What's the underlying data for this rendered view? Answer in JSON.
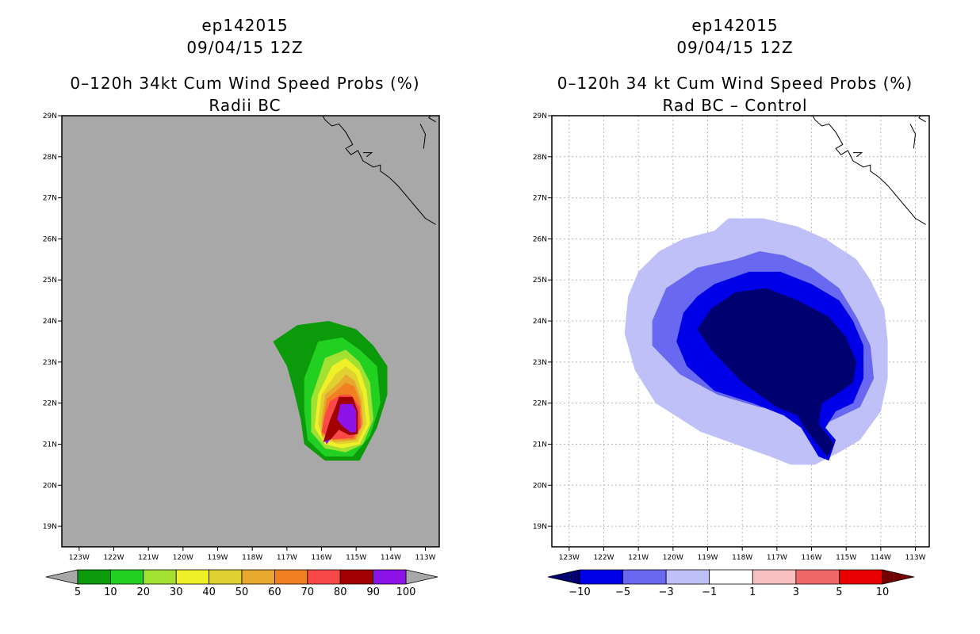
{
  "panels": [
    {
      "storm_id": "ep142015",
      "datetime": "09/04/15 12Z",
      "title": "0–120h 34kt Cum Wind Speed Probs (%)",
      "subtitle": "Radii BC"
    },
    {
      "storm_id": "ep142015",
      "datetime": "09/04/15 12Z",
      "title": "0–120h 34 kt Cum Wind Speed Probs (%)",
      "subtitle": "Rad BC – Control"
    }
  ],
  "chart_data": [
    {
      "type": "heatmap",
      "title": "0–120h 34kt Cum Wind Speed Probs (%)",
      "subtitle": "Radii BC",
      "xlabel": "",
      "ylabel": "",
      "xlim": [
        -123.5,
        -112.6
      ],
      "ylim": [
        18.5,
        29
      ],
      "x_ticks": [
        "123W",
        "122W",
        "121W",
        "120W",
        "119W",
        "118W",
        "117W",
        "116W",
        "115W",
        "114W",
        "113W"
      ],
      "y_ticks": [
        "19N",
        "20N",
        "21N",
        "22N",
        "23N",
        "24N",
        "25N",
        "26N",
        "27N",
        "28N",
        "29N"
      ],
      "grid": false,
      "background": "#a8a8a8",
      "colorbar": {
        "labels": [
          "5",
          "10",
          "20",
          "30",
          "40",
          "50",
          "60",
          "70",
          "80",
          "90",
          "100"
        ],
        "colors": [
          "#0a9a0a",
          "#22d022",
          "#a2e032",
          "#f0f028",
          "#e0d030",
          "#e8a830",
          "#f08020",
          "#f84848",
          "#a00000",
          "#8c14e8"
        ],
        "end_colors": [
          "#a8a8a8",
          "#a8a8a8"
        ]
      },
      "contours": [
        {
          "level": 5,
          "color": "#0a9a0a",
          "points": [
            [
              -116.7,
              23.9
            ],
            [
              -115.8,
              24.0
            ],
            [
              -115.0,
              23.8
            ],
            [
              -114.5,
              23.4
            ],
            [
              -114.1,
              22.9
            ],
            [
              -114.1,
              22.2
            ],
            [
              -114.4,
              21.4
            ],
            [
              -114.9,
              20.6
            ],
            [
              -115.9,
              20.6
            ],
            [
              -116.5,
              21.0
            ],
            [
              -116.6,
              21.6
            ],
            [
              -116.8,
              22.3
            ],
            [
              -117.0,
              22.9
            ],
            [
              -117.4,
              23.5
            ]
          ]
        },
        {
          "level": 10,
          "color": "#22d022",
          "points": [
            [
              -116.1,
              23.5
            ],
            [
              -115.4,
              23.6
            ],
            [
              -114.9,
              23.3
            ],
            [
              -114.4,
              22.9
            ],
            [
              -114.3,
              22.0
            ],
            [
              -114.6,
              21.2
            ],
            [
              -115.1,
              20.7
            ],
            [
              -115.9,
              20.7
            ],
            [
              -116.4,
              21.1
            ],
            [
              -116.5,
              21.8
            ],
            [
              -116.5,
              22.6
            ]
          ]
        },
        {
          "level": 20,
          "color": "#a2e032",
          "points": [
            [
              -115.9,
              23.1
            ],
            [
              -115.3,
              23.3
            ],
            [
              -114.9,
              23.0
            ],
            [
              -114.6,
              22.5
            ],
            [
              -114.5,
              21.6
            ],
            [
              -114.8,
              21.0
            ],
            [
              -115.3,
              20.8
            ],
            [
              -115.9,
              20.9
            ],
            [
              -116.3,
              21.3
            ],
            [
              -116.3,
              22.1
            ]
          ]
        },
        {
          "level": 30,
          "color": "#f0f028",
          "points": [
            [
              -115.7,
              22.9
            ],
            [
              -115.3,
              23.1
            ],
            [
              -114.9,
              22.8
            ],
            [
              -114.7,
              22.3
            ],
            [
              -114.6,
              21.5
            ],
            [
              -114.9,
              21.0
            ],
            [
              -115.4,
              20.9
            ],
            [
              -115.9,
              21.0
            ],
            [
              -116.2,
              21.4
            ],
            [
              -116.1,
              22.2
            ]
          ]
        },
        {
          "level": 40,
          "color": "#e0d030",
          "points": [
            [
              -115.6,
              22.7
            ],
            [
              -115.3,
              22.9
            ],
            [
              -115.0,
              22.7
            ],
            [
              -114.8,
              22.2
            ],
            [
              -114.7,
              21.5
            ],
            [
              -114.95,
              21.05
            ],
            [
              -115.5,
              21.0
            ],
            [
              -115.95,
              21.1
            ],
            [
              -116.1,
              21.5
            ],
            [
              -116.0,
              22.2
            ]
          ]
        },
        {
          "level": 50,
          "color": "#e8a830",
          "points": [
            [
              -115.5,
              22.5
            ],
            [
              -115.3,
              22.7
            ],
            [
              -115.05,
              22.55
            ],
            [
              -114.85,
              22.1
            ],
            [
              -114.8,
              21.5
            ],
            [
              -115.0,
              21.1
            ],
            [
              -115.6,
              21.05
            ],
            [
              -116.0,
              21.2
            ],
            [
              -116.0,
              21.6
            ],
            [
              -115.9,
              22.2
            ]
          ]
        },
        {
          "level": 60,
          "color": "#f08020",
          "points": [
            [
              -115.5,
              22.35
            ],
            [
              -115.3,
              22.5
            ],
            [
              -115.05,
              22.4
            ],
            [
              -114.88,
              22.0
            ],
            [
              -114.82,
              21.5
            ],
            [
              -115.05,
              21.12
            ],
            [
              -115.65,
              21.1
            ],
            [
              -116.0,
              21.25
            ],
            [
              -115.95,
              21.6
            ],
            [
              -115.85,
              22.1
            ]
          ]
        },
        {
          "level": 70,
          "color": "#f84848",
          "points": [
            [
              -115.45,
              22.2
            ],
            [
              -115.15,
              22.2
            ],
            [
              -114.9,
              21.9
            ],
            [
              -114.86,
              21.4
            ],
            [
              -115.1,
              21.15
            ],
            [
              -115.7,
              21.12
            ],
            [
              -116.0,
              21.3
            ],
            [
              -115.9,
              21.7
            ],
            [
              -115.75,
              22.05
            ]
          ]
        },
        {
          "level": 80,
          "color": "#a00000",
          "points": [
            [
              -115.5,
              22.15
            ],
            [
              -115.1,
              22.15
            ],
            [
              -114.95,
              21.8
            ],
            [
              -114.95,
              21.25
            ],
            [
              -115.2,
              21.22
            ],
            [
              -115.5,
              21.35
            ],
            [
              -115.75,
              21.1
            ],
            [
              -115.95,
              21.05
            ],
            [
              -115.75,
              21.6
            ],
            [
              -115.6,
              21.9
            ]
          ]
        },
        {
          "level": 90,
          "color": "#8c14e8",
          "points": [
            [
              -115.45,
              21.98
            ],
            [
              -115.1,
              21.98
            ],
            [
              -115.0,
              21.8
            ],
            [
              -115.0,
              21.3
            ],
            [
              -115.15,
              21.28
            ],
            [
              -115.4,
              21.45
            ],
            [
              -115.55,
              21.6
            ]
          ]
        },
        {
          "level": 90,
          "color": "#8c14e8",
          "points": [
            [
              -115.9,
              21.08
            ],
            [
              -115.75,
              21.12
            ],
            [
              -115.85,
              21.0
            ]
          ]
        }
      ]
    },
    {
      "type": "heatmap",
      "title": "0–120h 34 kt Cum Wind Speed Probs (%)",
      "subtitle": "Rad BC – Control",
      "xlabel": "",
      "ylabel": "",
      "xlim": [
        -123.5,
        -112.6
      ],
      "ylim": [
        18.5,
        29
      ],
      "x_ticks": [
        "123W",
        "122W",
        "121W",
        "120W",
        "119W",
        "118W",
        "117W",
        "116W",
        "115W",
        "114W",
        "113W"
      ],
      "y_ticks": [
        "19N",
        "20N",
        "21N",
        "22N",
        "23N",
        "24N",
        "25N",
        "26N",
        "27N",
        "28N",
        "29N"
      ],
      "grid": true,
      "background": "#ffffff",
      "colorbar": {
        "labels": [
          "−10",
          "−5",
          "−3",
          "−1",
          "1",
          "3",
          "5",
          "10"
        ],
        "colors": [
          "#0000e8",
          "#6868f0",
          "#c0c0f8",
          "#ffffff",
          "#f8c0c0",
          "#f06868",
          "#e80000"
        ],
        "end_colors": [
          "#000070",
          "#700000"
        ]
      },
      "contours": [
        {
          "level": -1,
          "color": "#c0c0f8",
          "points": [
            [
              -118.4,
              26.5
            ],
            [
              -117.4,
              26.5
            ],
            [
              -116.4,
              26.3
            ],
            [
              -115.6,
              26.0
            ],
            [
              -114.7,
              25.5
            ],
            [
              -114.3,
              25.0
            ],
            [
              -113.9,
              24.3
            ],
            [
              -113.8,
              23.5
            ],
            [
              -113.8,
              22.6
            ],
            [
              -114.0,
              21.8
            ],
            [
              -114.6,
              21.1
            ],
            [
              -115.2,
              20.8
            ],
            [
              -115.9,
              20.5
            ],
            [
              -116.6,
              20.5
            ],
            [
              -117.2,
              20.7
            ],
            [
              -118.2,
              21.0
            ],
            [
              -119.2,
              21.3
            ],
            [
              -120.5,
              22.0
            ],
            [
              -121.1,
              22.8
            ],
            [
              -121.4,
              23.7
            ],
            [
              -121.3,
              24.6
            ],
            [
              -121.0,
              25.2
            ],
            [
              -120.4,
              25.7
            ],
            [
              -119.7,
              26.0
            ],
            [
              -118.8,
              26.2
            ]
          ]
        },
        {
          "level": -3,
          "color": "#6868f0",
          "points": [
            [
              -118.2,
              25.5
            ],
            [
              -117.5,
              25.7
            ],
            [
              -116.8,
              25.6
            ],
            [
              -116.0,
              25.3
            ],
            [
              -115.2,
              24.8
            ],
            [
              -114.7,
              24.1
            ],
            [
              -114.3,
              23.4
            ],
            [
              -114.2,
              22.6
            ],
            [
              -114.6,
              21.9
            ],
            [
              -115.1,
              21.7
            ],
            [
              -115.6,
              21.5
            ],
            [
              -116.0,
              21.6
            ],
            [
              -116.7,
              21.8
            ],
            [
              -117.5,
              21.9
            ],
            [
              -118.7,
              22.2
            ],
            [
              -119.8,
              22.7
            ],
            [
              -120.6,
              23.4
            ],
            [
              -120.6,
              24.0
            ],
            [
              -120.2,
              24.8
            ],
            [
              -119.3,
              25.3
            ]
          ]
        },
        {
          "level": -5,
          "color": "#0000e8",
          "points": [
            [
              -118.8,
              24.9
            ],
            [
              -117.8,
              25.2
            ],
            [
              -116.9,
              25.2
            ],
            [
              -116.0,
              24.9
            ],
            [
              -115.2,
              24.5
            ],
            [
              -114.8,
              24.0
            ],
            [
              -114.5,
              23.4
            ],
            [
              -114.5,
              22.6
            ],
            [
              -114.8,
              22.0
            ],
            [
              -115.3,
              21.8
            ],
            [
              -115.6,
              21.4
            ],
            [
              -115.3,
              21.1
            ],
            [
              -115.5,
              20.6
            ],
            [
              -115.8,
              20.7
            ],
            [
              -116.3,
              21.4
            ],
            [
              -116.8,
              21.7
            ],
            [
              -117.7,
              22.0
            ],
            [
              -118.8,
              22.3
            ],
            [
              -119.6,
              22.9
            ],
            [
              -119.9,
              23.5
            ],
            [
              -119.7,
              24.2
            ],
            [
              -119.3,
              24.6
            ]
          ]
        },
        {
          "level": -10,
          "color": "#000070",
          "points": [
            [
              -118.9,
              24.3
            ],
            [
              -118.2,
              24.7
            ],
            [
              -117.3,
              24.8
            ],
            [
              -116.4,
              24.5
            ],
            [
              -115.5,
              24.1
            ],
            [
              -115.0,
              23.6
            ],
            [
              -114.7,
              23.0
            ],
            [
              -114.8,
              22.5
            ],
            [
              -115.3,
              22.2
            ],
            [
              -115.7,
              22.0
            ],
            [
              -115.8,
              21.5
            ],
            [
              -115.35,
              21.0
            ],
            [
              -115.55,
              20.7
            ],
            [
              -116.2,
              21.4
            ],
            [
              -116.4,
              21.7
            ],
            [
              -117.0,
              21.9
            ],
            [
              -118.0,
              22.5
            ],
            [
              -118.9,
              23.3
            ],
            [
              -119.3,
              23.8
            ]
          ]
        }
      ]
    }
  ],
  "map": {
    "coastline": [
      [
        -116.0,
        29.05
      ],
      [
        -115.9,
        28.9
      ],
      [
        -115.7,
        28.75
      ],
      [
        -115.5,
        28.8
      ],
      [
        -115.3,
        28.6
      ],
      [
        -115.1,
        28.3
      ],
      [
        -115.3,
        28.2
      ],
      [
        -115.15,
        28.05
      ],
      [
        -114.95,
        28.15
      ],
      [
        -114.8,
        27.9
      ],
      [
        -114.5,
        27.75
      ],
      [
        -114.3,
        27.8
      ],
      [
        -114.3,
        27.65
      ],
      [
        -114.05,
        27.5
      ],
      [
        -113.8,
        27.3
      ],
      [
        -113.5,
        27.0
      ],
      [
        -113.3,
        26.8
      ],
      [
        -113.0,
        26.5
      ],
      [
        -112.7,
        26.35
      ]
    ],
    "coastline2": [
      [
        -114.8,
        28.1
      ],
      [
        -114.55,
        28.1
      ],
      [
        -114.7,
        28.0
      ]
    ],
    "coastline3": [
      [
        -113.15,
        28.8
      ],
      [
        -113.0,
        28.55
      ],
      [
        -113.05,
        28.2
      ]
    ],
    "coastline4": [
      [
        -112.8,
        29.05
      ],
      [
        -112.9,
        28.95
      ],
      [
        -112.7,
        28.85
      ]
    ]
  }
}
